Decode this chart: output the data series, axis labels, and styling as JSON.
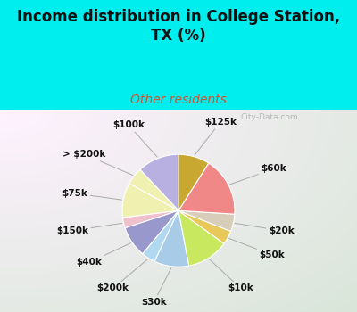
{
  "title": "Income distribution in College Station,\nTX (%)",
  "subtitle": "Other residents",
  "title_color": "#111111",
  "subtitle_color": "#cc5533",
  "background_cyan": "#00EEEE",
  "watermark": "City-Data.com",
  "labels": [
    "$100k",
    "> $200k",
    "$75k",
    "$150k",
    "$40k",
    "$200k",
    "$30k",
    "$10k",
    "$50k",
    "$20k",
    "$60k",
    "$125k"
  ],
  "values": [
    12,
    5,
    10,
    3,
    9,
    4,
    10,
    12,
    4,
    5,
    17,
    9
  ],
  "colors": [
    "#b8b0e0",
    "#f0f0b0",
    "#f0f0b0",
    "#f0c0cc",
    "#9898cc",
    "#b0d8f0",
    "#a8cce8",
    "#c8e860",
    "#e8c858",
    "#d8cdb8",
    "#f08888",
    "#c8a830"
  ],
  "startangle": 90,
  "label_fontsize": 7.5,
  "title_fontsize": 12,
  "subtitle_fontsize": 10
}
